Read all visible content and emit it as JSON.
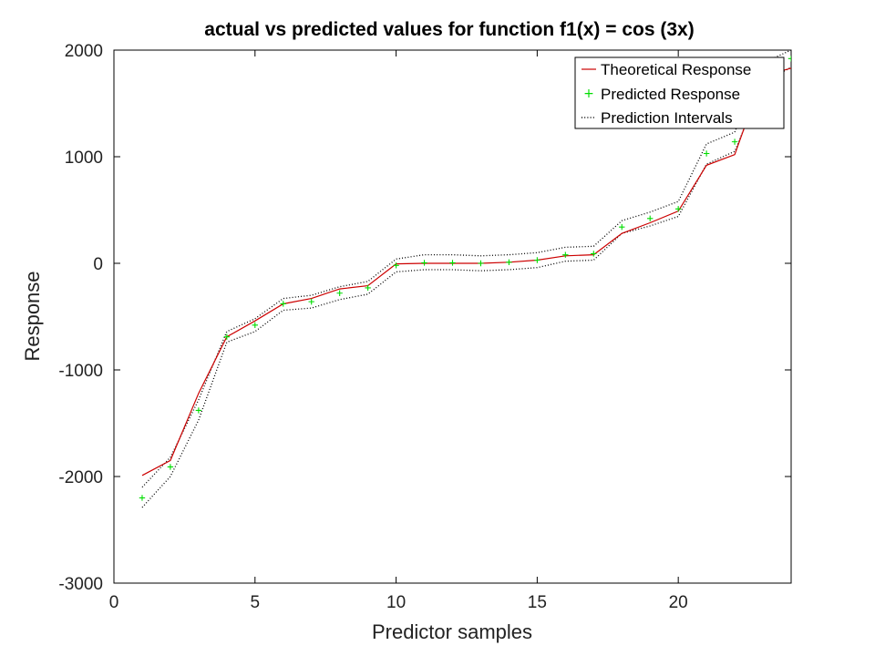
{
  "chart_data": {
    "type": "line",
    "title": "actual vs predicted values for function f1(x) = cos (3x)",
    "xlabel": "Predictor samples",
    "ylabel": "Response",
    "xlim": [
      0,
      24
    ],
    "ylim": [
      -3000,
      2000
    ],
    "xticks": [
      0,
      5,
      10,
      15,
      20
    ],
    "yticks": [
      -3000,
      -2000,
      -1000,
      0,
      1000,
      2000
    ],
    "grid": false,
    "legend_position": "top-right",
    "colors": {
      "theoretical": "#cc0000",
      "predicted": "#00dd00",
      "intervals": "#000000"
    },
    "x": [
      1,
      2,
      3,
      4,
      5,
      6,
      7,
      8,
      9,
      10,
      11,
      12,
      13,
      14,
      15,
      16,
      17,
      18,
      19,
      20,
      21,
      22,
      23,
      24
    ],
    "series": [
      {
        "name": "Theoretical Response",
        "style": "line",
        "values": [
          -1990,
          -1850,
          -1220,
          -690,
          -540,
          -380,
          -330,
          -240,
          -210,
          -5,
          0,
          0,
          0,
          10,
          30,
          70,
          80,
          280,
          380,
          490,
          920,
          1020,
          1760,
          1830
        ]
      },
      {
        "name": "Predicted Response",
        "style": "markers",
        "values": [
          -2200,
          -1910,
          -1380,
          -690,
          -580,
          -380,
          -360,
          -280,
          -230,
          -20,
          5,
          5,
          0,
          10,
          30,
          80,
          90,
          340,
          420,
          510,
          1030,
          1140,
          1780,
          1920
        ]
      },
      {
        "name": "Prediction Intervals",
        "style": "dotted",
        "upper": [
          -2100,
          -1820,
          -1280,
          -640,
          -520,
          -330,
          -300,
          -220,
          -170,
          40,
          80,
          80,
          70,
          80,
          100,
          150,
          160,
          400,
          480,
          580,
          1120,
          1230,
          1880,
          2000
        ],
        "lower": [
          -2290,
          -2000,
          -1470,
          -740,
          -640,
          -440,
          -420,
          -340,
          -290,
          -80,
          -60,
          -60,
          -70,
          -60,
          -40,
          20,
          30,
          280,
          350,
          440,
          930,
          1050,
          1690,
          1840
        ]
      }
    ]
  }
}
